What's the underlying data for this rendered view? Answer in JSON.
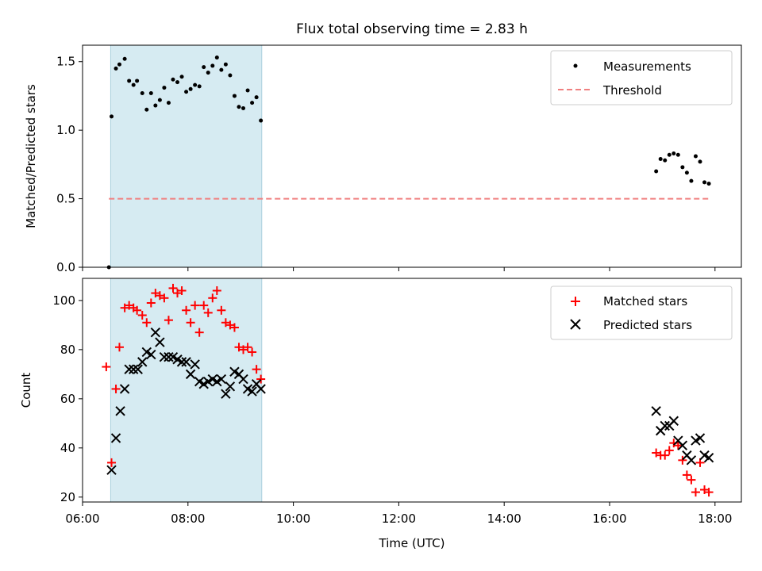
{
  "title": "Flux total observing time = 2.83 h",
  "colors": {
    "measure": "#000000",
    "threshold": "#f08080",
    "matched": "#ff0000",
    "predicted": "#000000",
    "shade": "#add8e6"
  },
  "chart_data": [
    {
      "type": "scatter",
      "ylabel": "Matched/Predicted stars",
      "xlim": [
        "06:00",
        "18:30"
      ],
      "ylim": [
        0,
        1.62
      ],
      "yticks": [
        "0.0",
        "0.5",
        "1.0",
        "1.5"
      ],
      "shaded_interval": [
        "06:32",
        "09:24"
      ],
      "legend": {
        "position": "top-right",
        "entries": [
          "Measurements",
          "Threshold"
        ]
      },
      "threshold": {
        "name": "Threshold",
        "value": 0.5,
        "x_range": [
          "06:30",
          "17:55"
        ]
      },
      "series": [
        {
          "name": "Measurements",
          "x": [
            "06:30",
            "06:33",
            "06:38",
            "06:42",
            "06:48",
            "06:53",
            "06:58",
            "07:02",
            "07:08",
            "07:13",
            "07:18",
            "07:23",
            "07:28",
            "07:33",
            "07:38",
            "07:43",
            "07:48",
            "07:53",
            "07:58",
            "08:03",
            "08:08",
            "08:13",
            "08:18",
            "08:23",
            "08:28",
            "08:33",
            "08:38",
            "08:43",
            "08:48",
            "08:53",
            "08:58",
            "09:03",
            "09:08",
            "09:13",
            "09:18",
            "09:23",
            "16:53",
            "16:58",
            "17:03",
            "17:08",
            "17:13",
            "17:18",
            "17:23",
            "17:28",
            "17:33",
            "17:38",
            "17:43",
            "17:48",
            "17:53"
          ],
          "y": [
            0.0,
            1.1,
            1.45,
            1.48,
            1.52,
            1.36,
            1.33,
            1.36,
            1.27,
            1.15,
            1.27,
            1.18,
            1.22,
            1.31,
            1.2,
            1.37,
            1.35,
            1.39,
            1.28,
            1.3,
            1.33,
            1.32,
            1.46,
            1.42,
            1.47,
            1.53,
            1.44,
            1.48,
            1.4,
            1.25,
            1.17,
            1.16,
            1.29,
            1.2,
            1.24,
            1.07,
            0.7,
            0.79,
            0.78,
            0.82,
            0.83,
            0.82,
            0.73,
            0.69,
            0.63,
            0.81,
            0.77,
            0.62,
            0.61
          ]
        }
      ]
    },
    {
      "type": "scatter",
      "xlabel": "Time (UTC)",
      "ylabel": "Count",
      "xlim": [
        "06:00",
        "18:30"
      ],
      "ylim": [
        18,
        109
      ],
      "xticks": [
        "06:00",
        "08:00",
        "10:00",
        "12:00",
        "14:00",
        "16:00",
        "18:00"
      ],
      "yticks": [
        "20",
        "40",
        "60",
        "80",
        "100"
      ],
      "shaded_interval": [
        "06:32",
        "09:24"
      ],
      "legend": {
        "position": "top-right",
        "entries": [
          "Matched stars",
          "Predicted stars"
        ]
      },
      "series": [
        {
          "name": "Matched stars",
          "x": [
            "06:27",
            "06:33",
            "06:38",
            "06:42",
            "06:48",
            "06:53",
            "06:58",
            "07:02",
            "07:08",
            "07:13",
            "07:18",
            "07:23",
            "07:28",
            "07:33",
            "07:38",
            "07:43",
            "07:48",
            "07:53",
            "07:58",
            "08:03",
            "08:08",
            "08:13",
            "08:18",
            "08:23",
            "08:28",
            "08:33",
            "08:38",
            "08:43",
            "08:48",
            "08:53",
            "08:58",
            "09:03",
            "09:08",
            "09:13",
            "09:18",
            "09:23",
            "16:53",
            "16:58",
            "17:03",
            "17:08",
            "17:13",
            "17:18",
            "17:23",
            "17:28",
            "17:33",
            "17:38",
            "17:43",
            "17:48",
            "17:53"
          ],
          "y": [
            73,
            34,
            64,
            81,
            97,
            98,
            97,
            96,
            94,
            91,
            99,
            103,
            102,
            101,
            92,
            105,
            103,
            104,
            96,
            91,
            98,
            87,
            98,
            95,
            101,
            104,
            96,
            91,
            90,
            89,
            81,
            80,
            81,
            79,
            72,
            68,
            38,
            37,
            37,
            39,
            42,
            41,
            35,
            29,
            27,
            22,
            34,
            23,
            22
          ]
        },
        {
          "name": "Predicted stars",
          "x": [
            "06:33",
            "06:38",
            "06:43",
            "06:48",
            "06:53",
            "06:58",
            "07:03",
            "07:08",
            "07:13",
            "07:18",
            "07:23",
            "07:28",
            "07:33",
            "07:38",
            "07:43",
            "07:48",
            "07:53",
            "07:58",
            "08:03",
            "08:08",
            "08:13",
            "08:18",
            "08:23",
            "08:28",
            "08:33",
            "08:38",
            "08:43",
            "08:48",
            "08:53",
            "08:58",
            "09:03",
            "09:08",
            "09:13",
            "09:18",
            "09:23",
            "16:53",
            "16:58",
            "17:03",
            "17:08",
            "17:13",
            "17:18",
            "17:23",
            "17:28",
            "17:33",
            "17:38",
            "17:43",
            "17:48",
            "17:53"
          ],
          "y": [
            31,
            44,
            55,
            64,
            72,
            72,
            72,
            75,
            79,
            78,
            87,
            83,
            77,
            77,
            77,
            76,
            75,
            75,
            70,
            74,
            67,
            66,
            67,
            68,
            67,
            68,
            62,
            65,
            71,
            70,
            68,
            64,
            63,
            66,
            64,
            55,
            47,
            49,
            49,
            51,
            43,
            41,
            37,
            35,
            43,
            44,
            37,
            36
          ]
        }
      ]
    }
  ]
}
